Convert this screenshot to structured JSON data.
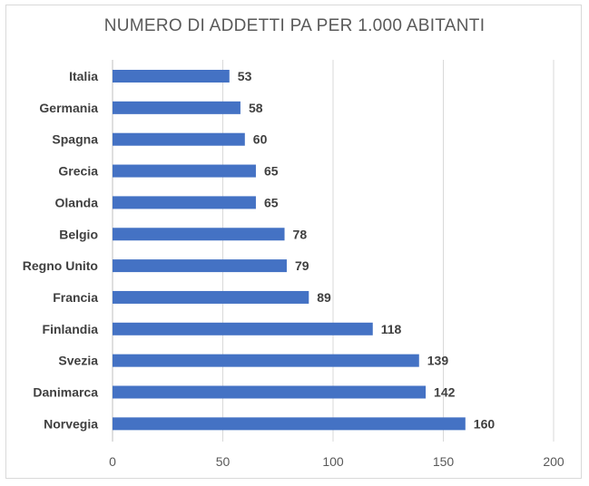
{
  "chart_data": {
    "type": "bar",
    "orientation": "horizontal",
    "title": "NUMERO DI ADDETTI PA PER 1.000 ABITANTI",
    "categories": [
      "Italia",
      "Germania",
      "Spagna",
      "Grecia",
      "Olanda",
      "Belgio",
      "Regno Unito",
      "Francia",
      "Finlandia",
      "Svezia",
      "Danimarca",
      "Norvegia"
    ],
    "values": [
      53,
      58,
      60,
      65,
      65,
      78,
      79,
      89,
      118,
      139,
      142,
      160
    ],
    "xlim": [
      0,
      200
    ],
    "xticks": [
      0,
      50,
      100,
      150,
      200
    ],
    "xlabel": "",
    "ylabel": "",
    "grid": "vertical",
    "bar_color": "#4472C4"
  }
}
